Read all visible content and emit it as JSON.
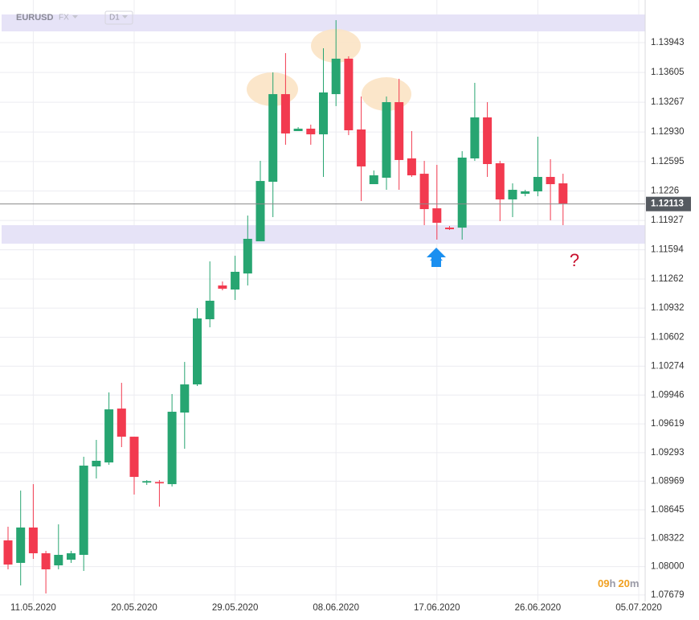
{
  "chart_data": {
    "type": "candlestick",
    "symbol": "EURUSD",
    "market": "FX",
    "timeframe": "D1",
    "annotation": "?",
    "timer": {
      "hours": "09",
      "hours_unit": "h",
      "minutes": "20",
      "minutes_unit": "m"
    },
    "categories": [
      null,
      null,
      "11.05.2020",
      null,
      null,
      null,
      null,
      null,
      null,
      null,
      "20.05.2020",
      null,
      null,
      null,
      null,
      null,
      null,
      null,
      "29.05.2020",
      null,
      null,
      null,
      null,
      null,
      null,
      null,
      "08.06.2020",
      null,
      null,
      null,
      null,
      null,
      null,
      null,
      "17.06.2020",
      null,
      null,
      null,
      null,
      null,
      null,
      null,
      "26.06.2020",
      null,
      null,
      null,
      null,
      null,
      null,
      null,
      "05.07.2020"
    ],
    "open": [
      1.08298,
      1.08043,
      1.08444,
      1.08152,
      1.08015,
      1.08079,
      1.08134,
      1.09137,
      1.09182,
      1.09793,
      1.09474,
      1.08954,
      1.0896,
      1.08936,
      1.09748,
      1.10067,
      1.10806,
      1.11189,
      1.11143,
      1.11325,
      1.1169,
      1.12365,
      1.13359,
      1.1294,
      1.12967,
      1.12903,
      1.13359,
      1.13761,
      1.12958,
      1.12338,
      1.12411,
      1.13268,
      1.1263,
      1.12456,
      1.12064,
      1.11845,
      1.11845,
      1.1263,
      1.13095,
      1.12575,
      1.12165,
      1.12229,
      1.12256,
      1.1242,
      1.12347,
      null,
      null,
      null,
      null,
      null,
      null
    ],
    "high": [
      1.08453,
      1.08863,
      1.08936,
      1.08179,
      1.0848,
      1.08179,
      1.09246,
      1.09438,
      1.09976,
      1.10085,
      1.09474,
      1.08982,
      1.08982,
      1.09958,
      1.10322,
      1.10933,
      1.11462,
      1.11234,
      1.11526,
      1.11982,
      1.12602,
      1.13606,
      1.13824,
      1.12985,
      1.13013,
      1.13879,
      1.14198,
      1.13788,
      1.13332,
      1.12493,
      1.13332,
      1.13533,
      1.1294,
      1.12602,
      1.12557,
      1.11864,
      1.12712,
      1.13487,
      1.13268,
      1.12602,
      1.12347,
      1.12274,
      1.12876,
      1.12621,
      1.12456,
      null,
      null,
      null,
      null,
      null,
      null
    ],
    "low": [
      1.0797,
      1.07787,
      1.08088,
      1.07696,
      1.0797,
      1.08043,
      1.07951,
      1.09,
      1.09155,
      1.09356,
      1.08818,
      1.08927,
      1.08681,
      1.08909,
      1.09337,
      1.10049,
      1.10715,
      1.11134,
      1.11025,
      1.11189,
      1.1169,
      1.11964,
      1.12785,
      1.1294,
      1.12785,
      1.1242,
      1.13223,
      1.12894,
      1.12146,
      1.12338,
      1.12274,
      1.12274,
      1.1242,
      1.11873,
      1.11709,
      1.11818,
      1.11709,
      1.12602,
      1.1242,
      1.11919,
      1.11964,
      1.12201,
      1.12201,
      1.11928,
      1.11873,
      null,
      null,
      null,
      null,
      null,
      null
    ],
    "close": [
      1.08024,
      1.08444,
      1.08152,
      1.0797,
      1.08134,
      1.08152,
      1.09146,
      1.09201,
      1.09784,
      1.09474,
      1.09018,
      1.0897,
      1.08945,
      1.09757,
      1.10067,
      1.10815,
      1.11016,
      1.11152,
      1.11344,
      1.11718,
      1.12374,
      1.13359,
      1.12913,
      1.12967,
      1.12903,
      1.13378,
      1.13761,
      1.12949,
      1.12539,
      1.12438,
      1.13268,
      1.12612,
      1.12438,
      1.12055,
      1.119,
      1.11827,
      1.12639,
      1.13095,
      1.12566,
      1.12165,
      1.12274,
      1.12256,
      1.1242,
      1.12338,
      1.12119,
      null,
      null,
      null,
      null,
      null,
      null
    ],
    "up_color": "#27a571",
    "down_color": "#f23a4f",
    "last_price": 1.12113,
    "ylim": [
      1.07605,
      1.14317
    ],
    "yticks": [
      1.07679,
      {
        "value": 1.08,
        "label": "1.08000"
      },
      1.08322,
      1.08645,
      1.08969,
      1.09293,
      1.09619,
      1.09946,
      1.10274,
      1.10602,
      1.10932,
      1.11262,
      1.11594,
      1.11927,
      1.1226,
      1.12595,
      {
        "value": 1.1293,
        "label": "1.12930"
      },
      1.13267,
      1.13605,
      1.13943
    ],
    "grid": true
  }
}
